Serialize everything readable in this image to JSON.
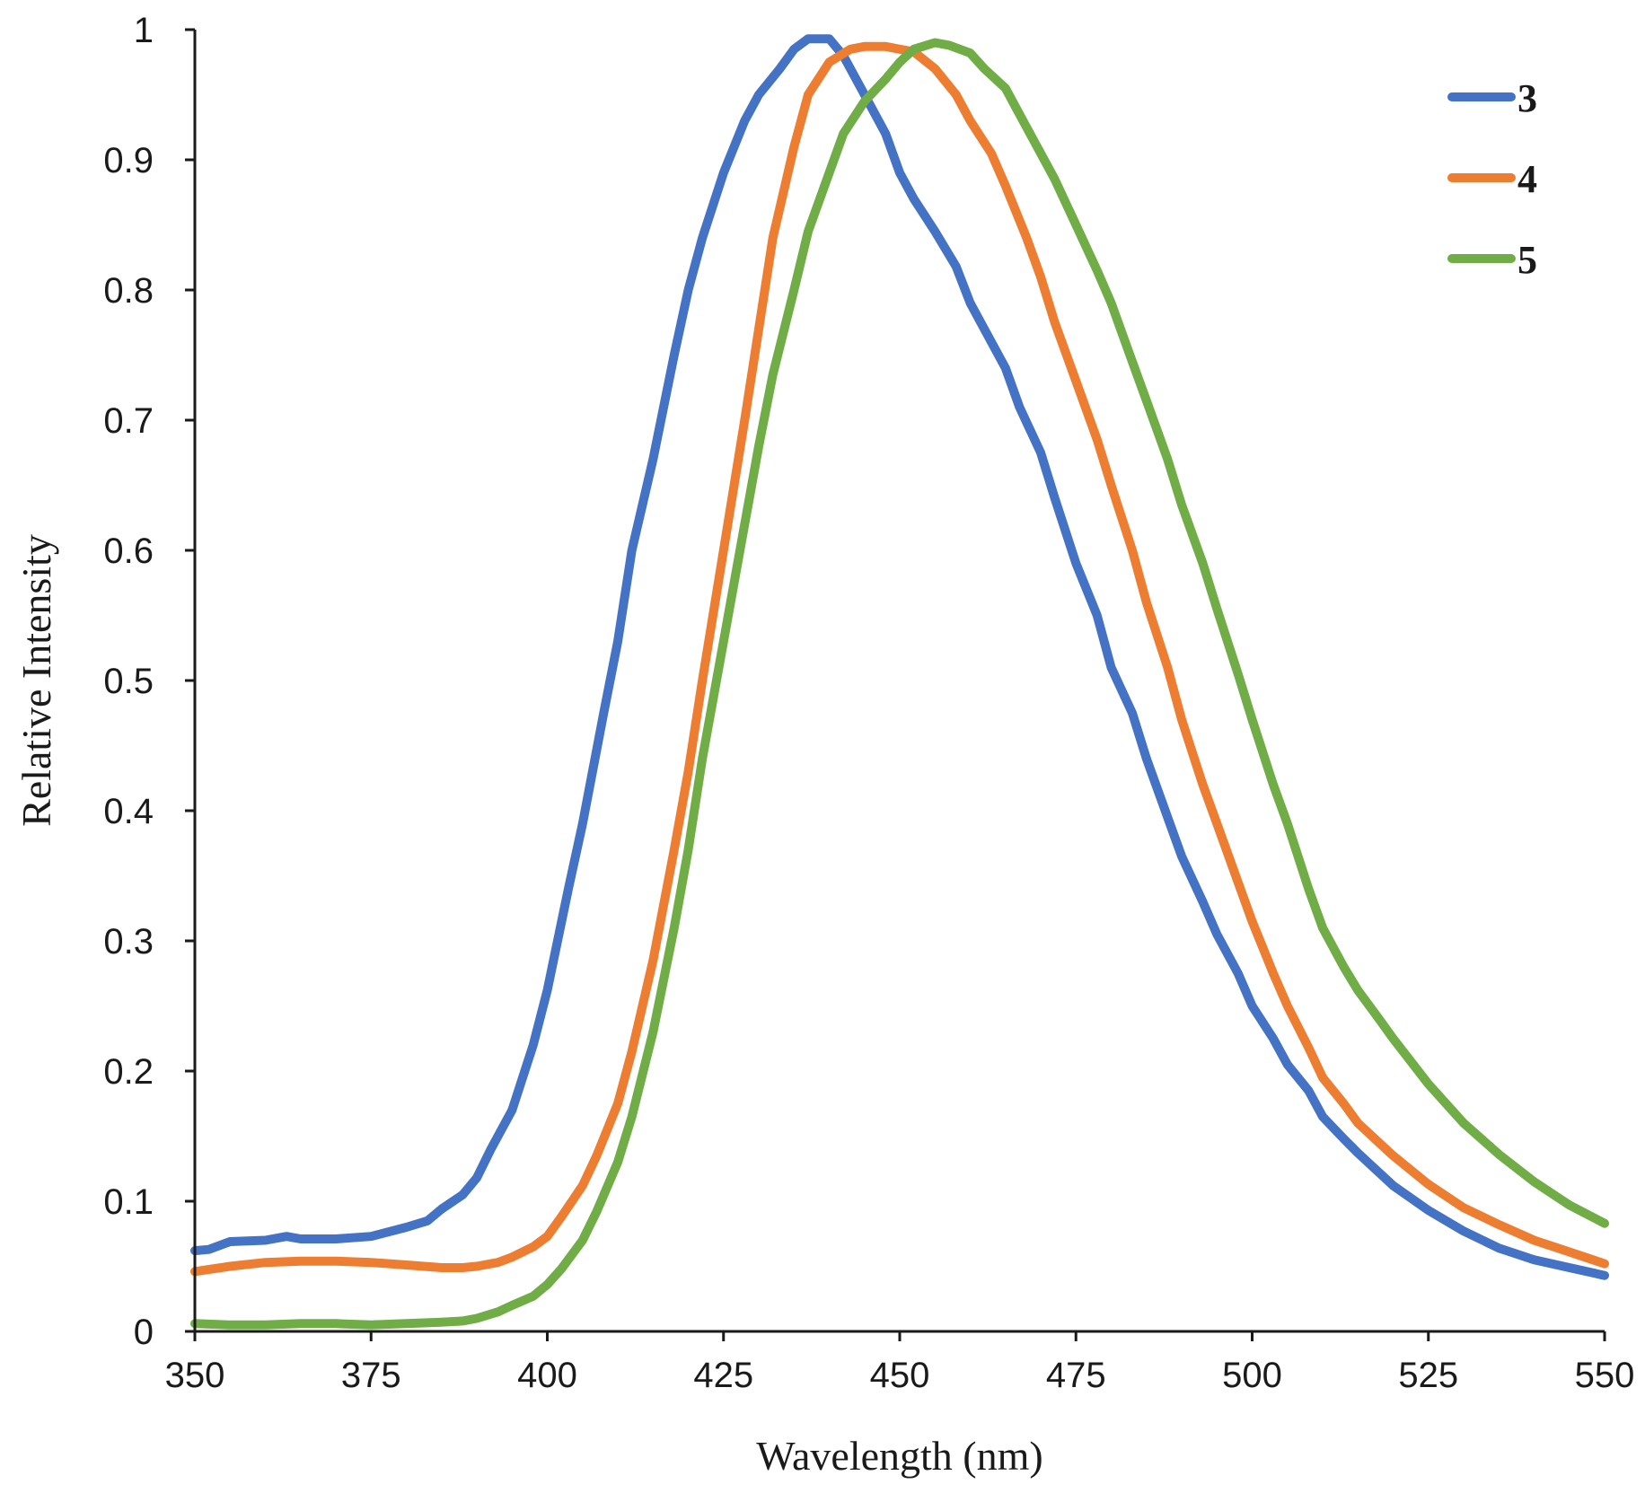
{
  "chart_data": {
    "type": "line",
    "title": "",
    "xlabel": "Wavelength (nm)",
    "ylabel": "Relative Intensity",
    "xlim": [
      350,
      550
    ],
    "ylim": [
      0,
      1
    ],
    "x_ticks": [
      "350",
      "375",
      "400",
      "425",
      "450",
      "475",
      "500",
      "525",
      "550"
    ],
    "y_ticks": [
      "0",
      "0.1",
      "0.2",
      "0.3",
      "0.4",
      "0.5",
      "0.6",
      "0.7",
      "0.8",
      "0.9",
      "1"
    ],
    "legend_position": "top-right",
    "series": [
      {
        "name": "3",
        "color": "#4472C4",
        "points": [
          [
            350,
            0.062
          ],
          [
            352,
            0.063
          ],
          [
            355,
            0.069
          ],
          [
            360,
            0.07
          ],
          [
            363,
            0.073
          ],
          [
            365,
            0.071
          ],
          [
            370,
            0.071
          ],
          [
            375,
            0.073
          ],
          [
            380,
            0.08
          ],
          [
            383,
            0.085
          ],
          [
            385,
            0.094
          ],
          [
            388,
            0.105
          ],
          [
            390,
            0.118
          ],
          [
            392,
            0.14
          ],
          [
            395,
            0.17
          ],
          [
            398,
            0.22
          ],
          [
            400,
            0.262
          ],
          [
            403,
            0.34
          ],
          [
            405,
            0.39
          ],
          [
            408,
            0.475
          ],
          [
            410,
            0.53
          ],
          [
            412,
            0.6
          ],
          [
            415,
            0.67
          ],
          [
            418,
            0.75
          ],
          [
            420,
            0.8
          ],
          [
            422,
            0.84
          ],
          [
            425,
            0.89
          ],
          [
            428,
            0.93
          ],
          [
            430,
            0.95
          ],
          [
            433,
            0.97
          ],
          [
            435,
            0.985
          ],
          [
            437,
            0.993
          ],
          [
            440,
            0.993
          ],
          [
            442,
            0.98
          ],
          [
            445,
            0.95
          ],
          [
            448,
            0.92
          ],
          [
            450,
            0.89
          ],
          [
            452,
            0.87
          ],
          [
            455,
            0.845
          ],
          [
            458,
            0.818
          ],
          [
            460,
            0.79
          ],
          [
            462,
            0.77
          ],
          [
            465,
            0.74
          ],
          [
            467,
            0.71
          ],
          [
            470,
            0.675
          ],
          [
            472,
            0.64
          ],
          [
            475,
            0.59
          ],
          [
            478,
            0.55
          ],
          [
            480,
            0.51
          ],
          [
            483,
            0.475
          ],
          [
            485,
            0.44
          ],
          [
            488,
            0.395
          ],
          [
            490,
            0.365
          ],
          [
            493,
            0.33
          ],
          [
            495,
            0.305
          ],
          [
            498,
            0.275
          ],
          [
            500,
            0.25
          ],
          [
            503,
            0.225
          ],
          [
            505,
            0.205
          ],
          [
            508,
            0.185
          ],
          [
            510,
            0.165
          ],
          [
            513,
            0.148
          ],
          [
            515,
            0.137
          ],
          [
            518,
            0.122
          ],
          [
            520,
            0.112
          ],
          [
            525,
            0.093
          ],
          [
            530,
            0.077
          ],
          [
            535,
            0.064
          ],
          [
            540,
            0.055
          ],
          [
            545,
            0.049
          ],
          [
            550,
            0.043
          ]
        ]
      },
      {
        "name": "4",
        "color": "#ED7D31",
        "points": [
          [
            350,
            0.046
          ],
          [
            355,
            0.05
          ],
          [
            360,
            0.053
          ],
          [
            365,
            0.054
          ],
          [
            370,
            0.054
          ],
          [
            375,
            0.053
          ],
          [
            380,
            0.051
          ],
          [
            385,
            0.049
          ],
          [
            388,
            0.049
          ],
          [
            390,
            0.05
          ],
          [
            393,
            0.053
          ],
          [
            395,
            0.057
          ],
          [
            398,
            0.065
          ],
          [
            400,
            0.073
          ],
          [
            402,
            0.088
          ],
          [
            405,
            0.112
          ],
          [
            407,
            0.135
          ],
          [
            410,
            0.175
          ],
          [
            412,
            0.215
          ],
          [
            415,
            0.285
          ],
          [
            418,
            0.37
          ],
          [
            420,
            0.43
          ],
          [
            422,
            0.5
          ],
          [
            425,
            0.6
          ],
          [
            428,
            0.7
          ],
          [
            430,
            0.77
          ],
          [
            432,
            0.84
          ],
          [
            435,
            0.91
          ],
          [
            437,
            0.95
          ],
          [
            440,
            0.975
          ],
          [
            443,
            0.985
          ],
          [
            445,
            0.987
          ],
          [
            448,
            0.987
          ],
          [
            450,
            0.985
          ],
          [
            452,
            0.983
          ],
          [
            455,
            0.97
          ],
          [
            458,
            0.95
          ],
          [
            460,
            0.93
          ],
          [
            463,
            0.905
          ],
          [
            465,
            0.88
          ],
          [
            468,
            0.84
          ],
          [
            470,
            0.81
          ],
          [
            472,
            0.775
          ],
          [
            475,
            0.73
          ],
          [
            478,
            0.685
          ],
          [
            480,
            0.65
          ],
          [
            483,
            0.6
          ],
          [
            485,
            0.56
          ],
          [
            488,
            0.51
          ],
          [
            490,
            0.47
          ],
          [
            493,
            0.42
          ],
          [
            495,
            0.39
          ],
          [
            498,
            0.345
          ],
          [
            500,
            0.315
          ],
          [
            503,
            0.275
          ],
          [
            505,
            0.25
          ],
          [
            508,
            0.218
          ],
          [
            510,
            0.195
          ],
          [
            513,
            0.175
          ],
          [
            515,
            0.16
          ],
          [
            518,
            0.145
          ],
          [
            520,
            0.135
          ],
          [
            525,
            0.113
          ],
          [
            530,
            0.095
          ],
          [
            535,
            0.082
          ],
          [
            540,
            0.07
          ],
          [
            545,
            0.061
          ],
          [
            550,
            0.052
          ]
        ]
      },
      {
        "name": "5",
        "color": "#70AD47",
        "points": [
          [
            350,
            0.006
          ],
          [
            355,
            0.005
          ],
          [
            360,
            0.005
          ],
          [
            365,
            0.006
          ],
          [
            370,
            0.006
          ],
          [
            375,
            0.005
          ],
          [
            380,
            0.006
          ],
          [
            385,
            0.007
          ],
          [
            388,
            0.008
          ],
          [
            390,
            0.01
          ],
          [
            393,
            0.015
          ],
          [
            395,
            0.02
          ],
          [
            398,
            0.027
          ],
          [
            400,
            0.036
          ],
          [
            402,
            0.048
          ],
          [
            405,
            0.07
          ],
          [
            407,
            0.092
          ],
          [
            410,
            0.13
          ],
          [
            412,
            0.165
          ],
          [
            415,
            0.23
          ],
          [
            418,
            0.31
          ],
          [
            420,
            0.37
          ],
          [
            422,
            0.44
          ],
          [
            425,
            0.53
          ],
          [
            428,
            0.62
          ],
          [
            430,
            0.68
          ],
          [
            432,
            0.735
          ],
          [
            435,
            0.8
          ],
          [
            437,
            0.845
          ],
          [
            440,
            0.89
          ],
          [
            442,
            0.92
          ],
          [
            445,
            0.945
          ],
          [
            448,
            0.962
          ],
          [
            450,
            0.975
          ],
          [
            452,
            0.985
          ],
          [
            455,
            0.99
          ],
          [
            457,
            0.988
          ],
          [
            460,
            0.982
          ],
          [
            462,
            0.97
          ],
          [
            465,
            0.955
          ],
          [
            467,
            0.935
          ],
          [
            470,
            0.905
          ],
          [
            472,
            0.885
          ],
          [
            475,
            0.85
          ],
          [
            478,
            0.815
          ],
          [
            480,
            0.79
          ],
          [
            483,
            0.745
          ],
          [
            485,
            0.715
          ],
          [
            488,
            0.67
          ],
          [
            490,
            0.635
          ],
          [
            493,
            0.59
          ],
          [
            495,
            0.555
          ],
          [
            498,
            0.505
          ],
          [
            500,
            0.47
          ],
          [
            503,
            0.42
          ],
          [
            505,
            0.39
          ],
          [
            508,
            0.34
          ],
          [
            510,
            0.31
          ],
          [
            513,
            0.28
          ],
          [
            515,
            0.262
          ],
          [
            518,
            0.24
          ],
          [
            520,
            0.225
          ],
          [
            525,
            0.19
          ],
          [
            530,
            0.16
          ],
          [
            535,
            0.136
          ],
          [
            540,
            0.115
          ],
          [
            545,
            0.097
          ],
          [
            550,
            0.083
          ]
        ]
      }
    ]
  }
}
